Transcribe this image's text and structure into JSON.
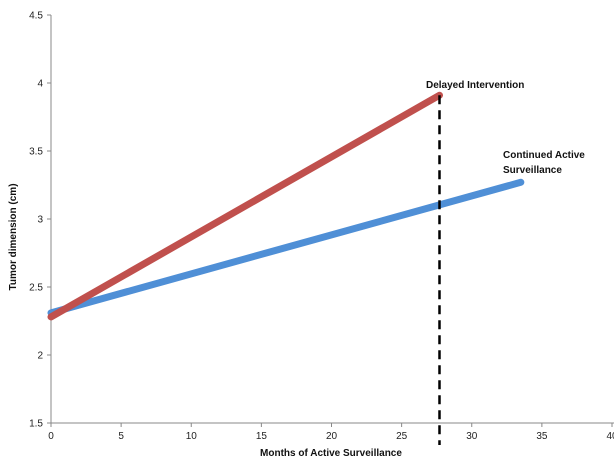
{
  "chart_data": {
    "type": "line",
    "title": "",
    "xlabel": "Months of Active Surveillance",
    "ylabel": "Tumor dimension (cm)",
    "xlim": [
      0,
      40
    ],
    "ylim": [
      1.5,
      4.5
    ],
    "xticks": [
      0,
      5,
      10,
      15,
      20,
      25,
      30,
      35,
      40
    ],
    "yticks": [
      1.5,
      2,
      2.5,
      3,
      3.5,
      4,
      4.5
    ],
    "xtick_labels": [
      "0",
      "5",
      "10",
      "15",
      "20",
      "25",
      "30",
      "35",
      "40"
    ],
    "ytick_labels": [
      "1.5",
      "2",
      "2.5",
      "3",
      "3.5",
      "4",
      "4.5"
    ],
    "grid": false,
    "legend": "none",
    "series": [
      {
        "label_id": "delayed",
        "color": "#C0504D",
        "x": [
          0,
          27.7
        ],
        "y": [
          2.28,
          3.91
        ]
      },
      {
        "label_id": "continued",
        "color": "#4F8FD6",
        "x": [
          0,
          33.5
        ],
        "y": [
          2.31,
          3.27
        ]
      }
    ],
    "vline": {
      "x": 27.7,
      "color": "#000000",
      "style": "dashed"
    },
    "annotations": {
      "delayed": "Delayed Intervention",
      "continued_line1": "Continued Active",
      "continued_line2": "Surveillance"
    }
  }
}
